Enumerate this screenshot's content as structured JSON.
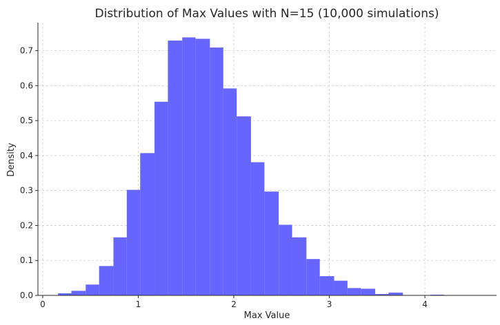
{
  "chart_data": {
    "type": "bar",
    "title": "Distribution of Max Values with N=15 (10,000 simulations)",
    "xlabel": "Max Value",
    "ylabel": "Density",
    "xlim": [
      -0.05,
      4.75
    ],
    "ylim": [
      0,
      0.78
    ],
    "grid": true,
    "bar_color": "#6666ff",
    "x_ticks": [
      {
        "value": 0,
        "label": "0"
      },
      {
        "value": 1,
        "label": "1"
      },
      {
        "value": 2,
        "label": "2"
      },
      {
        "value": 3,
        "label": "3"
      },
      {
        "value": 4,
        "label": "4"
      }
    ],
    "y_ticks": [
      {
        "value": 0.0,
        "label": "0.0"
      },
      {
        "value": 0.1,
        "label": "0.1"
      },
      {
        "value": 0.2,
        "label": "0.2"
      },
      {
        "value": 0.3,
        "label": "0.3"
      },
      {
        "value": 0.4,
        "label": "0.4"
      },
      {
        "value": 0.5,
        "label": "0.5"
      },
      {
        "value": 0.6,
        "label": "0.6"
      },
      {
        "value": 0.7,
        "label": "0.7"
      }
    ],
    "bins": [
      {
        "x0": 0.16,
        "x1": 0.3,
        "density": 0.006
      },
      {
        "x0": 0.3,
        "x1": 0.45,
        "density": 0.013
      },
      {
        "x0": 0.45,
        "x1": 0.59,
        "density": 0.031
      },
      {
        "x0": 0.59,
        "x1": 0.74,
        "density": 0.084
      },
      {
        "x0": 0.74,
        "x1": 0.88,
        "density": 0.166
      },
      {
        "x0": 0.88,
        "x1": 1.02,
        "density": 0.302
      },
      {
        "x0": 1.02,
        "x1": 1.17,
        "density": 0.407
      },
      {
        "x0": 1.17,
        "x1": 1.31,
        "density": 0.554
      },
      {
        "x0": 1.31,
        "x1": 1.46,
        "density": 0.729
      },
      {
        "x0": 1.46,
        "x1": 1.6,
        "density": 0.738
      },
      {
        "x0": 1.6,
        "x1": 1.75,
        "density": 0.734
      },
      {
        "x0": 1.75,
        "x1": 1.89,
        "density": 0.709
      },
      {
        "x0": 1.89,
        "x1": 2.03,
        "density": 0.592
      },
      {
        "x0": 2.03,
        "x1": 2.18,
        "density": 0.512
      },
      {
        "x0": 2.18,
        "x1": 2.32,
        "density": 0.381
      },
      {
        "x0": 2.32,
        "x1": 2.47,
        "density": 0.297
      },
      {
        "x0": 2.47,
        "x1": 2.61,
        "density": 0.202
      },
      {
        "x0": 2.61,
        "x1": 2.76,
        "density": 0.166
      },
      {
        "x0": 2.76,
        "x1": 2.9,
        "density": 0.104
      },
      {
        "x0": 2.9,
        "x1": 3.05,
        "density": 0.055
      },
      {
        "x0": 3.05,
        "x1": 3.19,
        "density": 0.042
      },
      {
        "x0": 3.19,
        "x1": 3.33,
        "density": 0.021
      },
      {
        "x0": 3.33,
        "x1": 3.48,
        "density": 0.019
      },
      {
        "x0": 3.48,
        "x1": 3.62,
        "density": 0.004
      },
      {
        "x0": 3.62,
        "x1": 3.77,
        "density": 0.008
      },
      {
        "x0": 3.77,
        "x1": 3.91,
        "density": 0.0
      },
      {
        "x0": 3.91,
        "x1": 4.06,
        "density": 0.0
      },
      {
        "x0": 4.06,
        "x1": 4.2,
        "density": 0.002
      }
    ]
  }
}
